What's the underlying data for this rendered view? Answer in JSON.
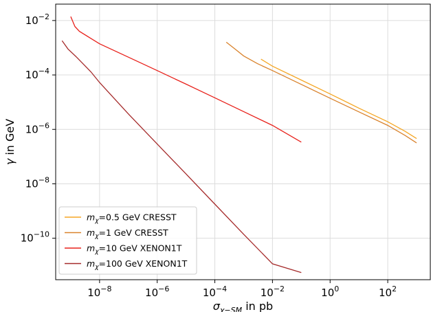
{
  "chart_data": {
    "type": "line",
    "title": "",
    "xlabel": "σ_{χ−SM} in pb",
    "ylabel": "γ in GeV",
    "xscale": "log",
    "yscale": "log",
    "xlim": [
      3e-10,
      3000
    ],
    "ylim": [
      3e-12,
      0.04
    ],
    "grid": true,
    "legend_position": "lower-left",
    "x_ticks": [
      {
        "value": 1e-08,
        "mantissa": "10",
        "exp": "−8"
      },
      {
        "value": 1e-06,
        "mantissa": "10",
        "exp": "−6"
      },
      {
        "value": 0.0001,
        "mantissa": "10",
        "exp": "−4"
      },
      {
        "value": 0.01,
        "mantissa": "10",
        "exp": "−2"
      },
      {
        "value": 1,
        "mantissa": "10",
        "exp": "0"
      },
      {
        "value": 100,
        "mantissa": "10",
        "exp": "2"
      }
    ],
    "y_ticks": [
      {
        "value": 1e-10,
        "mantissa": "10",
        "exp": "−10"
      },
      {
        "value": 1e-08,
        "mantissa": "10",
        "exp": "−8"
      },
      {
        "value": 1e-06,
        "mantissa": "10",
        "exp": "−6"
      },
      {
        "value": 0.0001,
        "mantissa": "10",
        "exp": "−4"
      },
      {
        "value": 0.01,
        "mantissa": "10",
        "exp": "−2"
      }
    ],
    "series": [
      {
        "name": "m_χ=0.5 GeV CRESST",
        "mass": "0.5",
        "detector": "CRESST",
        "color": "#f5a623",
        "points": [
          [
            0.004,
            0.00038
          ],
          [
            0.01,
            0.00021
          ],
          [
            0.1,
            6.5e-05
          ],
          [
            1,
            2e-05
          ],
          [
            10,
            6e-06
          ],
          [
            100,
            1.9e-06
          ],
          [
            400,
            8.5e-07
          ],
          [
            1000,
            4.6e-07
          ]
        ]
      },
      {
        "name": "m_χ=1 GeV CRESST",
        "mass": "1",
        "detector": "CRESST",
        "color": "#d9822b",
        "points": [
          [
            0.00025,
            0.0016
          ],
          [
            0.0005,
            0.0009
          ],
          [
            0.001,
            0.0005
          ],
          [
            0.003,
            0.00026
          ],
          [
            0.01,
            0.000145
          ],
          [
            0.1,
            4.5e-05
          ],
          [
            1,
            1.4e-05
          ],
          [
            10,
            4.4e-06
          ],
          [
            100,
            1.4e-06
          ],
          [
            400,
            6e-07
          ],
          [
            1000,
            3.2e-07
          ]
        ]
      },
      {
        "name": "m_χ=10 GeV XENON1T",
        "mass": "10",
        "detector": "XENON1T",
        "color": "#e8201a",
        "points": [
          [
            1e-09,
            0.014
          ],
          [
            1.4e-09,
            0.006
          ],
          [
            2e-09,
            0.004
          ],
          [
            5e-09,
            0.0022
          ],
          [
            1e-08,
            0.0014
          ],
          [
            1e-07,
            0.00045
          ],
          [
            1e-06,
            0.000145
          ],
          [
            1e-05,
            4.6e-05
          ],
          [
            0.0001,
            1.45e-05
          ],
          [
            0.001,
            4.5e-06
          ],
          [
            0.01,
            1.4e-06
          ],
          [
            0.1,
            3.4e-07
          ]
        ]
      },
      {
        "name": "m_χ=100 GeV XENON1T",
        "mass": "100",
        "detector": "XENON1T",
        "color": "#a52a2a",
        "points": [
          [
            5e-10,
            0.0018
          ],
          [
            8e-10,
            0.0009
          ],
          [
            1.5e-09,
            0.00048
          ],
          [
            5e-09,
            0.00013
          ],
          [
            1e-08,
            5.3e-05
          ],
          [
            1e-07,
            3.7e-06
          ],
          [
            1e-06,
            2.9e-07
          ],
          [
            1e-05,
            2.3e-08
          ],
          [
            0.0001,
            1.8e-09
          ],
          [
            0.001,
            1.4e-10
          ],
          [
            0.01,
            1.15e-11
          ],
          [
            0.1,
            5.5e-12
          ]
        ]
      }
    ]
  }
}
